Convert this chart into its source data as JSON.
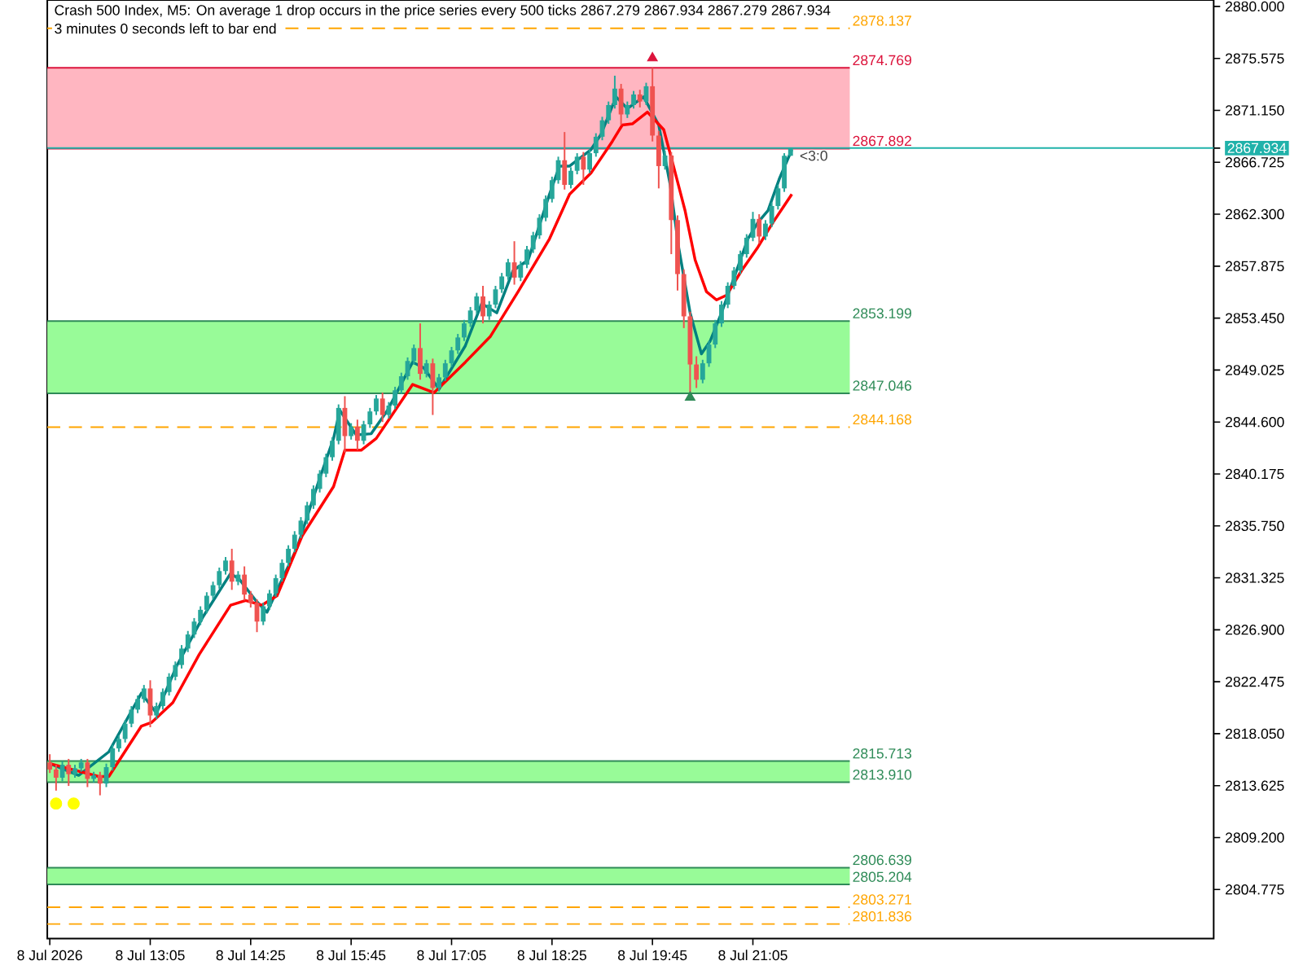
{
  "chart_data": {
    "type": "candlestick",
    "title": "Crash 500 Index, M5:  On average 1 drop occurs in the price series every 500 ticks  2867.279 2867.934 2867.279 2867.934",
    "subtitle": "3 minutes 0 seconds left to bar end",
    "x": [
      "2026-07-08T11:45",
      "2026-07-08T11:50",
      "2026-07-08T11:55",
      "2026-07-08T12:00",
      "2026-07-08T12:05",
      "2026-07-08T12:10",
      "2026-07-08T12:15",
      "2026-07-08T12:20",
      "2026-07-08T12:25",
      "2026-07-08T12:30",
      "2026-07-08T12:35",
      "2026-07-08T12:40",
      "2026-07-08T12:45",
      "2026-07-08T12:50",
      "2026-07-08T12:55",
      "2026-07-08T13:00",
      "2026-07-08T13:05",
      "2026-07-08T13:10",
      "2026-07-08T13:15",
      "2026-07-08T13:20",
      "2026-07-08T13:25",
      "2026-07-08T13:30",
      "2026-07-08T13:35",
      "2026-07-08T13:40",
      "2026-07-08T13:45",
      "2026-07-08T13:50",
      "2026-07-08T13:55",
      "2026-07-08T14:00",
      "2026-07-08T14:05",
      "2026-07-08T14:10",
      "2026-07-08T14:15",
      "2026-07-08T14:20",
      "2026-07-08T14:25",
      "2026-07-08T14:30",
      "2026-07-08T14:35",
      "2026-07-08T14:40",
      "2026-07-08T14:45",
      "2026-07-08T14:50",
      "2026-07-08T14:55",
      "2026-07-08T15:00",
      "2026-07-08T15:05",
      "2026-07-08T15:10",
      "2026-07-08T15:15",
      "2026-07-08T15:20",
      "2026-07-08T15:25",
      "2026-07-08T15:30",
      "2026-07-08T15:35",
      "2026-07-08T15:40",
      "2026-07-08T15:45",
      "2026-07-08T15:50",
      "2026-07-08T15:55",
      "2026-07-08T16:00",
      "2026-07-08T16:05",
      "2026-07-08T16:10",
      "2026-07-08T16:15",
      "2026-07-08T16:20",
      "2026-07-08T16:25",
      "2026-07-08T16:30",
      "2026-07-08T16:35",
      "2026-07-08T16:40",
      "2026-07-08T16:45",
      "2026-07-08T16:50",
      "2026-07-08T16:55",
      "2026-07-08T17:00",
      "2026-07-08T17:05",
      "2026-07-08T17:10",
      "2026-07-08T17:15",
      "2026-07-08T17:20",
      "2026-07-08T17:25",
      "2026-07-08T17:30",
      "2026-07-08T17:35",
      "2026-07-08T17:40",
      "2026-07-08T17:45",
      "2026-07-08T17:50",
      "2026-07-08T17:55",
      "2026-07-08T18:00",
      "2026-07-08T18:05",
      "2026-07-08T18:10",
      "2026-07-08T18:15",
      "2026-07-08T18:20",
      "2026-07-08T18:25",
      "2026-07-08T18:30",
      "2026-07-08T18:35",
      "2026-07-08T18:40",
      "2026-07-08T18:45",
      "2026-07-08T18:50",
      "2026-07-08T18:55",
      "2026-07-08T19:00",
      "2026-07-08T19:05",
      "2026-07-08T19:10",
      "2026-07-08T19:15",
      "2026-07-08T19:20",
      "2026-07-08T19:25",
      "2026-07-08T19:30",
      "2026-07-08T19:35",
      "2026-07-08T19:40",
      "2026-07-08T19:45",
      "2026-07-08T19:50",
      "2026-07-08T19:55",
      "2026-07-08T20:00",
      "2026-07-08T20:05",
      "2026-07-08T20:10",
      "2026-07-08T20:15",
      "2026-07-08T20:20",
      "2026-07-08T20:25",
      "2026-07-08T20:30",
      "2026-07-08T20:35",
      "2026-07-08T20:40",
      "2026-07-08T20:45",
      "2026-07-08T20:50",
      "2026-07-08T20:55",
      "2026-07-08T21:00",
      "2026-07-08T21:05",
      "2026-07-08T21:10",
      "2026-07-08T21:15",
      "2026-07-08T21:20",
      "2026-07-08T21:25",
      "2026-07-08T21:30",
      "2026-07-08T21:35"
    ],
    "ohlc": [
      [
        2815.6,
        2816.3,
        2814.7,
        2815.0
      ],
      [
        2815.0,
        2815.4,
        2813.2,
        2814.3
      ],
      [
        2814.3,
        2815.7,
        2814.0,
        2815.4
      ],
      [
        2815.4,
        2815.9,
        2813.6,
        2814.6
      ],
      [
        2814.6,
        2815.4,
        2814.3,
        2815.1
      ],
      [
        2815.1,
        2815.9,
        2814.8,
        2815.6
      ],
      [
        2815.6,
        2815.9,
        2813.5,
        2814.2
      ],
      [
        2814.2,
        2814.8,
        2813.9,
        2814.5
      ],
      [
        2814.5,
        2814.8,
        2812.8,
        2813.8
      ],
      [
        2813.8,
        2815.5,
        2813.5,
        2815.2
      ],
      [
        2815.2,
        2817.1,
        2814.9,
        2816.8
      ],
      [
        2816.8,
        2817.9,
        2816.5,
        2817.6
      ],
      [
        2817.6,
        2819.2,
        2817.3,
        2818.9
      ],
      [
        2818.9,
        2820.4,
        2818.6,
        2820.1
      ],
      [
        2820.1,
        2821.3,
        2819.8,
        2821.0
      ],
      [
        2821.0,
        2822.2,
        2820.7,
        2821.9
      ],
      [
        2821.9,
        2822.6,
        2818.6,
        2819.6
      ],
      [
        2819.6,
        2820.7,
        2819.3,
        2820.4
      ],
      [
        2820.4,
        2821.9,
        2820.1,
        2821.6
      ],
      [
        2821.6,
        2823.2,
        2821.3,
        2822.9
      ],
      [
        2822.9,
        2824.2,
        2822.6,
        2823.9
      ],
      [
        2823.9,
        2825.6,
        2823.6,
        2825.3
      ],
      [
        2825.3,
        2826.8,
        2825.0,
        2826.5
      ],
      [
        2826.5,
        2827.9,
        2826.2,
        2827.6
      ],
      [
        2827.6,
        2828.9,
        2827.3,
        2828.6
      ],
      [
        2828.6,
        2830.1,
        2828.3,
        2829.8
      ],
      [
        2829.8,
        2831.0,
        2829.5,
        2830.7
      ],
      [
        2830.7,
        2832.2,
        2830.4,
        2831.9
      ],
      [
        2831.9,
        2833.1,
        2831.6,
        2832.8
      ],
      [
        2832.8,
        2833.8,
        2830.3,
        2831.0
      ],
      [
        2831.0,
        2831.9,
        2830.7,
        2831.6
      ],
      [
        2831.6,
        2832.3,
        2829.4,
        2829.9
      ],
      [
        2829.9,
        2830.2,
        2828.8,
        2829.2
      ],
      [
        2829.2,
        2829.5,
        2826.7,
        2827.6
      ],
      [
        2827.6,
        2829.2,
        2827.3,
        2828.9
      ],
      [
        2828.9,
        2830.3,
        2828.6,
        2830.0
      ],
      [
        2830.0,
        2831.6,
        2829.7,
        2831.3
      ],
      [
        2831.3,
        2832.9,
        2831.0,
        2832.6
      ],
      [
        2832.6,
        2834.1,
        2832.3,
        2833.8
      ],
      [
        2833.8,
        2835.3,
        2833.5,
        2835.0
      ],
      [
        2835.0,
        2836.5,
        2834.7,
        2836.2
      ],
      [
        2836.2,
        2837.8,
        2835.9,
        2837.5
      ],
      [
        2837.5,
        2839.2,
        2837.2,
        2838.9
      ],
      [
        2838.9,
        2840.5,
        2838.6,
        2840.2
      ],
      [
        2840.2,
        2841.9,
        2839.9,
        2841.6
      ],
      [
        2841.6,
        2843.3,
        2841.3,
        2843.0
      ],
      [
        2843.0,
        2846.1,
        2842.7,
        2845.8
      ],
      [
        2845.8,
        2846.8,
        2842.0,
        2843.4
      ],
      [
        2843.4,
        2844.5,
        2843.1,
        2844.2
      ],
      [
        2844.2,
        2844.8,
        2842.2,
        2843.0
      ],
      [
        2843.0,
        2844.7,
        2842.7,
        2844.4
      ],
      [
        2844.4,
        2845.8,
        2844.1,
        2845.5
      ],
      [
        2845.5,
        2846.9,
        2845.2,
        2846.6
      ],
      [
        2846.6,
        2847.1,
        2844.6,
        2845.2
      ],
      [
        2845.2,
        2846.3,
        2844.9,
        2846.0
      ],
      [
        2846.0,
        2847.6,
        2845.7,
        2847.3
      ],
      [
        2847.3,
        2848.8,
        2847.0,
        2848.5
      ],
      [
        2848.5,
        2850.1,
        2848.2,
        2849.8
      ],
      [
        2849.8,
        2851.2,
        2849.5,
        2850.9
      ],
      [
        2850.9,
        2853.0,
        2848.2,
        2848.7
      ],
      [
        2848.7,
        2849.9,
        2848.4,
        2849.6
      ],
      [
        2849.6,
        2850.0,
        2845.2,
        2847.5
      ],
      [
        2847.5,
        2848.7,
        2847.2,
        2848.4
      ],
      [
        2848.4,
        2849.9,
        2848.1,
        2849.6
      ],
      [
        2849.6,
        2851.0,
        2849.3,
        2850.7
      ],
      [
        2850.7,
        2852.1,
        2850.4,
        2851.8
      ],
      [
        2851.8,
        2853.3,
        2851.5,
        2853.0
      ],
      [
        2853.0,
        2854.4,
        2852.7,
        2854.1
      ],
      [
        2854.1,
        2855.6,
        2853.8,
        2855.3
      ],
      [
        2855.3,
        2856.2,
        2853.0,
        2853.6
      ],
      [
        2853.6,
        2854.9,
        2853.3,
        2854.6
      ],
      [
        2854.6,
        2856.2,
        2854.3,
        2855.9
      ],
      [
        2855.9,
        2857.3,
        2855.6,
        2857.0
      ],
      [
        2857.0,
        2858.5,
        2856.7,
        2858.2
      ],
      [
        2858.2,
        2860.0,
        2856.3,
        2856.9
      ],
      [
        2856.9,
        2858.3,
        2856.6,
        2858.0
      ],
      [
        2858.0,
        2859.6,
        2857.7,
        2859.3
      ],
      [
        2859.3,
        2860.8,
        2859.0,
        2860.5
      ],
      [
        2860.5,
        2862.3,
        2860.2,
        2862.0
      ],
      [
        2862.0,
        2863.9,
        2861.7,
        2863.6
      ],
      [
        2863.6,
        2865.5,
        2863.3,
        2865.2
      ],
      [
        2865.2,
        2867.2,
        2864.9,
        2866.9
      ],
      [
        2866.9,
        2869.3,
        2864.4,
        2864.8
      ],
      [
        2864.8,
        2866.3,
        2864.5,
        2866.0
      ],
      [
        2866.0,
        2867.5,
        2865.7,
        2867.2
      ],
      [
        2867.2,
        2867.6,
        2864.8,
        2866.1
      ],
      [
        2866.1,
        2867.8,
        2865.8,
        2867.5
      ],
      [
        2867.5,
        2869.2,
        2867.2,
        2868.9
      ],
      [
        2868.9,
        2870.6,
        2868.6,
        2870.3
      ],
      [
        2870.3,
        2871.9,
        2870.0,
        2871.6
      ],
      [
        2871.6,
        2874.1,
        2871.3,
        2873.0
      ],
      [
        2873.0,
        2873.4,
        2869.9,
        2870.8
      ],
      [
        2870.8,
        2871.9,
        2870.5,
        2871.6
      ],
      [
        2871.6,
        2872.8,
        2871.3,
        2872.5
      ],
      [
        2872.5,
        2872.9,
        2871.4,
        2871.9
      ],
      [
        2871.9,
        2873.5,
        2871.6,
        2873.2
      ],
      [
        2873.2,
        2874.769,
        2868.5,
        2869.0
      ],
      [
        2869.0,
        2869.4,
        2864.5,
        2866.4
      ],
      [
        2866.4,
        2867.7,
        2866.1,
        2867.3
      ],
      [
        2867.3,
        2867.6,
        2858.9,
        2861.8
      ],
      [
        2861.8,
        2862.2,
        2855.8,
        2857.2
      ],
      [
        2857.2,
        2857.6,
        2852.6,
        2853.6
      ],
      [
        2853.6,
        2854.0,
        2847.046,
        2849.5
      ],
      [
        2849.5,
        2850.2,
        2847.5,
        2848.2
      ],
      [
        2848.2,
        2849.9,
        2847.9,
        2849.6
      ],
      [
        2849.6,
        2851.5,
        2849.3,
        2851.2
      ],
      [
        2851.2,
        2853.3,
        2850.9,
        2853.0
      ],
      [
        2853.0,
        2854.9,
        2852.7,
        2854.6
      ],
      [
        2854.6,
        2856.5,
        2854.3,
        2856.2
      ],
      [
        2856.2,
        2857.8,
        2855.9,
        2857.5
      ],
      [
        2857.5,
        2859.2,
        2857.2,
        2858.9
      ],
      [
        2858.9,
        2860.6,
        2858.6,
        2860.3
      ],
      [
        2860.3,
        2862.5,
        2860.0,
        2861.9
      ],
      [
        2861.9,
        2862.3,
        2859.8,
        2860.4
      ],
      [
        2860.4,
        2861.8,
        2860.1,
        2861.5
      ],
      [
        2861.5,
        2863.3,
        2861.2,
        2863.0
      ],
      [
        2863.0,
        2864.8,
        2862.7,
        2864.5
      ],
      [
        2864.5,
        2867.5,
        2864.2,
        2867.279
      ],
      [
        2867.279,
        2867.934,
        2867.279,
        2867.934
      ]
    ],
    "colors": [
      "#ef5350",
      "#ef5350",
      "#26a69a",
      "#ef5350",
      "#26a69a",
      "#26a69a",
      "#ef5350",
      "#26a69a",
      "#ef5350",
      "#26a69a",
      "#26a69a",
      "#26a69a",
      "#26a69a",
      "#26a69a",
      "#26a69a",
      "#26a69a",
      "#ef5350",
      "#26a69a",
      "#26a69a",
      "#26a69a",
      "#26a69a",
      "#26a69a",
      "#26a69a",
      "#26a69a",
      "#26a69a",
      "#26a69a",
      "#26a69a",
      "#26a69a",
      "#26a69a",
      "#ef5350",
      "#26a69a",
      "#ef5350",
      "#ef5350",
      "#ef5350",
      "#26a69a",
      "#26a69a",
      "#26a69a",
      "#26a69a",
      "#26a69a",
      "#26a69a",
      "#26a69a",
      "#26a69a",
      "#26a69a",
      "#26a69a",
      "#26a69a",
      "#26a69a",
      "#26a69a",
      "#ef5350",
      "#26a69a",
      "#ef5350",
      "#26a69a",
      "#26a69a",
      "#26a69a",
      "#ef5350",
      "#26a69a",
      "#26a69a",
      "#26a69a",
      "#26a69a",
      "#26a69a",
      "#ef5350",
      "#26a69a",
      "#ef5350",
      "#26a69a",
      "#26a69a",
      "#26a69a",
      "#26a69a",
      "#26a69a",
      "#26a69a",
      "#26a69a",
      "#ef5350",
      "#26a69a",
      "#26a69a",
      "#26a69a",
      "#26a69a",
      "#ef5350",
      "#26a69a",
      "#26a69a",
      "#26a69a",
      "#26a69a",
      "#26a69a",
      "#26a69a",
      "#26a69a",
      "#ef5350",
      "#26a69a",
      "#26a69a",
      "#ef5350",
      "#26a69a",
      "#26a69a",
      "#26a69a",
      "#26a69a",
      "#26a69a",
      "#ef5350",
      "#26a69a",
      "#26a69a",
      "#ef5350",
      "#26a69a",
      "#ef5350",
      "#ef5350",
      "#26a69a",
      "#ef5350",
      "#ef5350",
      "#ef5350",
      "#ef5350",
      "#ef5350",
      "#26a69a",
      "#26a69a",
      "#26a69a",
      "#26a69a",
      "#26a69a",
      "#26a69a",
      "#26a69a",
      "#26a69a",
      "#26a69a",
      "#ef5350",
      "#26a69a",
      "#26a69a",
      "#26a69a",
      "#26a69a",
      "#26a69a"
    ],
    "series": [
      {
        "type": "line",
        "color": "#008080",
        "x": [
          "2026-07-08T11:45",
          "2026-07-08T12:08",
          "2026-07-08T12:32",
          "2026-07-08T12:58",
          "2026-07-08T13:10",
          "2026-07-08T13:26",
          "2026-07-08T13:47",
          "2026-07-08T14:09",
          "2026-07-08T14:16",
          "2026-07-08T14:29",
          "2026-07-08T14:38",
          "2026-07-08T14:50",
          "2026-07-08T15:02",
          "2026-07-08T15:19",
          "2026-07-08T15:31",
          "2026-07-08T15:36",
          "2026-07-08T15:49",
          "2026-07-08T16:01",
          "2026-07-08T16:14",
          "2026-07-08T16:34",
          "2026-07-08T16:43",
          "2026-07-08T16:55",
          "2026-07-08T17:16",
          "2026-07-08T17:29",
          "2026-07-08T17:41",
          "2026-07-08T17:54",
          "2026-07-08T18:06",
          "2026-07-08T18:23",
          "2026-07-08T18:31",
          "2026-07-08T18:39",
          "2026-07-08T18:56",
          "2026-07-08T19:04",
          "2026-07-08T19:16",
          "2026-07-08T19:25",
          "2026-07-08T19:38",
          "2026-07-08T19:50",
          "2026-07-08T19:59",
          "2026-07-08T20:06",
          "2026-07-08T20:15",
          "2026-07-08T20:24",
          "2026-07-08T20:31",
          "2026-07-08T20:40",
          "2026-07-08T20:49",
          "2026-07-08T21:01",
          "2026-07-08T21:09",
          "2026-07-08T21:17",
          "2026-07-08T21:26",
          "2026-07-08T21:36"
        ],
        "values": [
          2815.5,
          2814.5,
          2816.5,
          2821.5,
          2819.8,
          2823.8,
          2828.0,
          2831.7,
          2831.2,
          2829.4,
          2828.4,
          2831.2,
          2833.9,
          2839.5,
          2843.2,
          2845.6,
          2843.5,
          2843.6,
          2845.6,
          2849.7,
          2849.2,
          2847.4,
          2851.1,
          2854.7,
          2853.9,
          2857.5,
          2858.4,
          2864.0,
          2866.4,
          2866.4,
          2867.8,
          2869.1,
          2872.3,
          2871.3,
          2872.3,
          2869.9,
          2864.9,
          2859.4,
          2853.9,
          2850.4,
          2851.5,
          2853.9,
          2856.6,
          2860.2,
          2861.6,
          2862.6,
          2865.3,
          2867.8
        ]
      },
      {
        "type": "line",
        "color": "#ff0000",
        "x": [
          "2026-07-08T11:45",
          "2026-07-08T12:24",
          "2026-07-08T12:32",
          "2026-07-08T12:58",
          "2026-07-08T13:06",
          "2026-07-08T13:23",
          "2026-07-08T13:44",
          "2026-07-08T14:09",
          "2026-07-08T14:21",
          "2026-07-08T14:34",
          "2026-07-08T14:46",
          "2026-07-08T15:06",
          "2026-07-08T15:31",
          "2026-07-08T15:40",
          "2026-07-08T15:53",
          "2026-07-08T16:05",
          "2026-07-08T16:34",
          "2026-07-08T16:51",
          "2026-07-08T17:16",
          "2026-07-08T17:36",
          "2026-07-08T17:58",
          "2026-07-08T18:23",
          "2026-07-08T18:39",
          "2026-07-08T18:56",
          "2026-07-08T19:13",
          "2026-07-08T19:21",
          "2026-07-08T19:29",
          "2026-07-08T19:41",
          "2026-07-08T19:54",
          "2026-07-08T20:02",
          "2026-07-08T20:11",
          "2026-07-08T20:19",
          "2026-07-08T20:28",
          "2026-07-08T20:36",
          "2026-07-08T20:44",
          "2026-07-08T20:56",
          "2026-07-08T21:09",
          "2026-07-08T21:21",
          "2026-07-08T21:36"
        ],
        "values": [
          2815.5,
          2814.4,
          2814.4,
          2818.7,
          2819.0,
          2820.7,
          2824.8,
          2829.0,
          2829.4,
          2829.0,
          2829.8,
          2834.9,
          2839.1,
          2842.2,
          2842.2,
          2843.2,
          2847.8,
          2847.1,
          2849.7,
          2851.9,
          2855.7,
          2860.2,
          2864.0,
          2865.8,
          2868.5,
          2869.9,
          2870.0,
          2871.0,
          2869.5,
          2866.3,
          2862.6,
          2858.4,
          2855.7,
          2855.0,
          2855.4,
          2857.5,
          2859.5,
          2861.6,
          2864.0
        ]
      },
      {
        "type": "scatter",
        "color": "#ffff00",
        "marker": "circle",
        "x": [
          "2026-07-08T11:50",
          "2026-07-08T12:04"
        ],
        "values": [
          2812.1,
          2812.1
        ]
      },
      {
        "type": "scatter",
        "color": "#dc143c",
        "marker": "triangle",
        "x": [
          "2026-07-08T19:45"
        ],
        "values": [
          2875.6
        ]
      },
      {
        "type": "scatter",
        "color": "#2e8b57",
        "marker": "triangle",
        "x": [
          "2026-07-08T20:15"
        ],
        "values": [
          2846.7
        ]
      }
    ],
    "xlim": [
      "2026-07-08T11:43",
      "2026-07-09T03:12"
    ],
    "ylim": [
      2800.6,
      2880.55
    ],
    "xticks": [
      {
        "value": "2026-07-08T11:45",
        "label": "8 Jul 2026"
      },
      {
        "value": "2026-07-08T13:05",
        "label": "8 Jul 13:05"
      },
      {
        "value": "2026-07-08T14:25",
        "label": "8 Jul 14:25"
      },
      {
        "value": "2026-07-08T15:45",
        "label": "8 Jul 15:45"
      },
      {
        "value": "2026-07-08T17:05",
        "label": "8 Jul 17:05"
      },
      {
        "value": "2026-07-08T18:25",
        "label": "8 Jul 18:25"
      },
      {
        "value": "2026-07-08T19:45",
        "label": "8 Jul 19:45"
      },
      {
        "value": "2026-07-08T21:05",
        "label": "8 Jul 21:05"
      }
    ],
    "yticks": [
      {
        "value": 2880,
        "label": "2880.000"
      },
      {
        "value": 2875.575,
        "label": "2875.575"
      },
      {
        "value": 2871.15,
        "label": "2871.150"
      },
      {
        "value": 2866.725,
        "label": "2866.725"
      },
      {
        "value": 2862.3,
        "label": "2862.300"
      },
      {
        "value": 2857.875,
        "label": "2857.875"
      },
      {
        "value": 2853.45,
        "label": "2853.450"
      },
      {
        "value": 2849.025,
        "label": "2849.025"
      },
      {
        "value": 2844.6,
        "label": "2844.600"
      },
      {
        "value": 2840.175,
        "label": "2840.175"
      },
      {
        "value": 2835.75,
        "label": "2835.750"
      },
      {
        "value": 2831.325,
        "label": "2831.325"
      },
      {
        "value": 2826.9,
        "label": "2826.900"
      },
      {
        "value": 2822.475,
        "label": "2822.475"
      },
      {
        "value": 2818.05,
        "label": "2818.050"
      },
      {
        "value": 2813.625,
        "label": "2813.625"
      },
      {
        "value": 2809.2,
        "label": "2809.200"
      },
      {
        "value": 2804.775,
        "label": "2804.775"
      },
      {
        "value": 2867.934,
        "label": "2867.934"
      }
    ],
    "bands": [
      {
        "axis": "y",
        "from": 2867.892,
        "to": 2874.769,
        "color": "#ffb6c1"
      },
      {
        "axis": "y",
        "from": 2847.046,
        "to": 2853.199,
        "color": "#98fb98"
      },
      {
        "axis": "y",
        "from": 2813.91,
        "to": 2815.713,
        "color": "#98fb98"
      },
      {
        "axis": "y",
        "from": 2805.204,
        "to": 2806.639,
        "color": "#98fb98"
      }
    ],
    "ref_lines": [
      {
        "axis": "y",
        "value": 2874.769,
        "label": "2874.769",
        "color": "#dc143c",
        "line_style": "solid"
      },
      {
        "axis": "y",
        "value": 2867.892,
        "label": "2867.892",
        "color": "#dc143c",
        "line_style": "solid"
      },
      {
        "axis": "y",
        "value": 2853.199,
        "label": "2853.199",
        "color": "#2e8b57",
        "line_style": "solid"
      },
      {
        "axis": "y",
        "value": 2847.046,
        "label": "2847.046",
        "color": "#2e8b57",
        "line_style": "solid"
      },
      {
        "axis": "y",
        "value": 2815.713,
        "label": "2815.713",
        "color": "#2e8b57",
        "line_style": "solid"
      },
      {
        "axis": "y",
        "value": 2813.91,
        "label": "2813.910",
        "color": "#2e8b57",
        "line_style": "solid"
      },
      {
        "axis": "y",
        "value": 2806.639,
        "label": "2806.639",
        "color": "#2e8b57",
        "line_style": "solid"
      },
      {
        "axis": "y",
        "value": 2805.204,
        "label": "2805.204",
        "color": "#2e8b57",
        "line_style": "solid"
      },
      {
        "axis": "y",
        "value": 2878.137,
        "label": "2878.137",
        "color": "#ffa500",
        "line_style": "dashed"
      },
      {
        "axis": "y",
        "value": 2844.168,
        "label": "2844.168",
        "color": "#ffa500",
        "line_style": "dashed"
      },
      {
        "axis": "y",
        "value": 2803.271,
        "label": "2803.271",
        "color": "#ffa500",
        "line_style": "dashed"
      },
      {
        "axis": "y",
        "value": 2801.836,
        "label": "2801.836",
        "color": "#ffa500",
        "line_style": "dashed"
      },
      {
        "axis": "y",
        "value": 2867.934,
        "label": null,
        "color": "#20b2aa",
        "line_style": "solid"
      }
    ],
    "annotations": [
      {
        "text": "<3:0",
        "x": "2026-07-08T21:35",
        "y": 2867.934
      }
    ]
  }
}
